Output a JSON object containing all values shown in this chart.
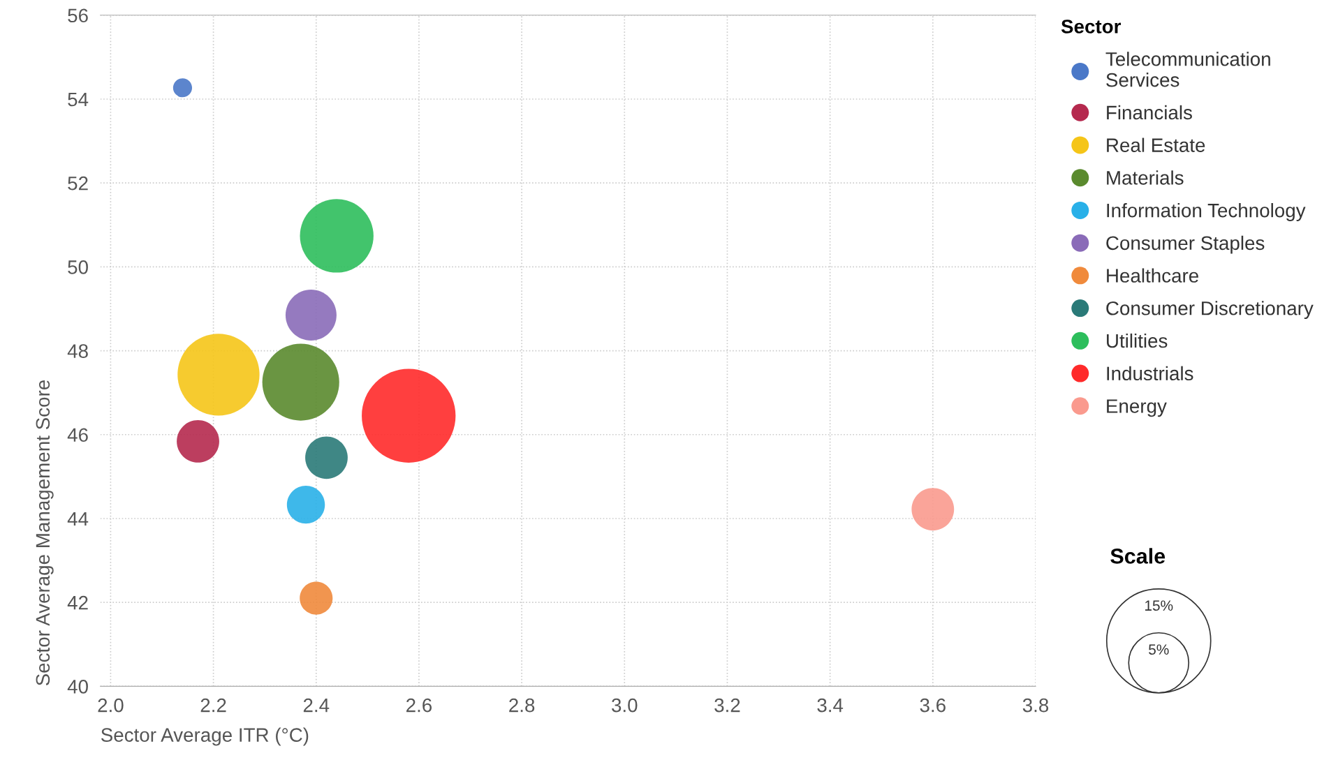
{
  "chart_data": {
    "type": "bubble",
    "xlabel": "Sector Average ITR (°C)",
    "ylabel": "Sector Average Management Score",
    "legend_title": "Sector",
    "series": [
      {
        "name": "Telecommunication Services",
        "color": "#4a78c8",
        "x": [
          2.14
        ],
        "values": [
          54.27
        ],
        "sizes": [
          0.5
        ]
      },
      {
        "name": "Financials",
        "color": "#b5294e",
        "x": [
          2.17
        ],
        "values": [
          45.84
        ],
        "sizes": [
          2.5
        ]
      },
      {
        "name": "Real Estate",
        "color": "#f5c518",
        "x": [
          2.21
        ],
        "values": [
          47.43
        ],
        "sizes": [
          9.3
        ]
      },
      {
        "name": "Materials",
        "color": "#5a8a2e",
        "x": [
          2.37
        ],
        "values": [
          47.25
        ],
        "sizes": [
          8.2
        ]
      },
      {
        "name": "Information Technology",
        "color": "#29b0e8",
        "x": [
          2.38
        ],
        "values": [
          44.33
        ],
        "sizes": [
          2.0
        ]
      },
      {
        "name": "Consumer Staples",
        "color": "#8a6bb8",
        "x": [
          2.39
        ],
        "values": [
          48.85
        ],
        "sizes": [
          3.6
        ]
      },
      {
        "name": "Healthcare",
        "color": "#f08a3c",
        "x": [
          2.4
        ],
        "values": [
          42.1
        ],
        "sizes": [
          1.5
        ]
      },
      {
        "name": "Consumer Discretionary",
        "color": "#2a7a78",
        "x": [
          2.42
        ],
        "values": [
          45.45
        ],
        "sizes": [
          2.5
        ]
      },
      {
        "name": "Utilities",
        "color": "#2dbe5c",
        "x": [
          2.44
        ],
        "values": [
          50.74
        ],
        "sizes": [
          7.5
        ]
      },
      {
        "name": "Industrials",
        "color": "#ff2a2a",
        "x": [
          2.58
        ],
        "values": [
          46.45
        ],
        "sizes": [
          12.2
        ]
      },
      {
        "name": "Energy",
        "color": "#fa9a8e",
        "x": [
          3.6
        ],
        "values": [
          44.22
        ],
        "sizes": [
          2.5
        ]
      }
    ],
    "size_legend": [
      {
        "value": 5,
        "label": "5%"
      },
      {
        "value": 15,
        "label": "15%"
      }
    ],
    "annotations": [
      "Scale"
    ],
    "xlim": [
      1.98,
      3.8
    ],
    "xticks": [
      {
        "value": 2.0,
        "label": "2.0"
      },
      2.2,
      2.4,
      2.6,
      2.8,
      {
        "value": 3.0,
        "label": "3.0"
      },
      3.2,
      3.4,
      3.6,
      3.8
    ],
    "ylim": [
      40,
      56
    ],
    "yticks": [
      40,
      42,
      44,
      46,
      48,
      50,
      52,
      54,
      56
    ],
    "grid": true,
    "legend": "right"
  }
}
